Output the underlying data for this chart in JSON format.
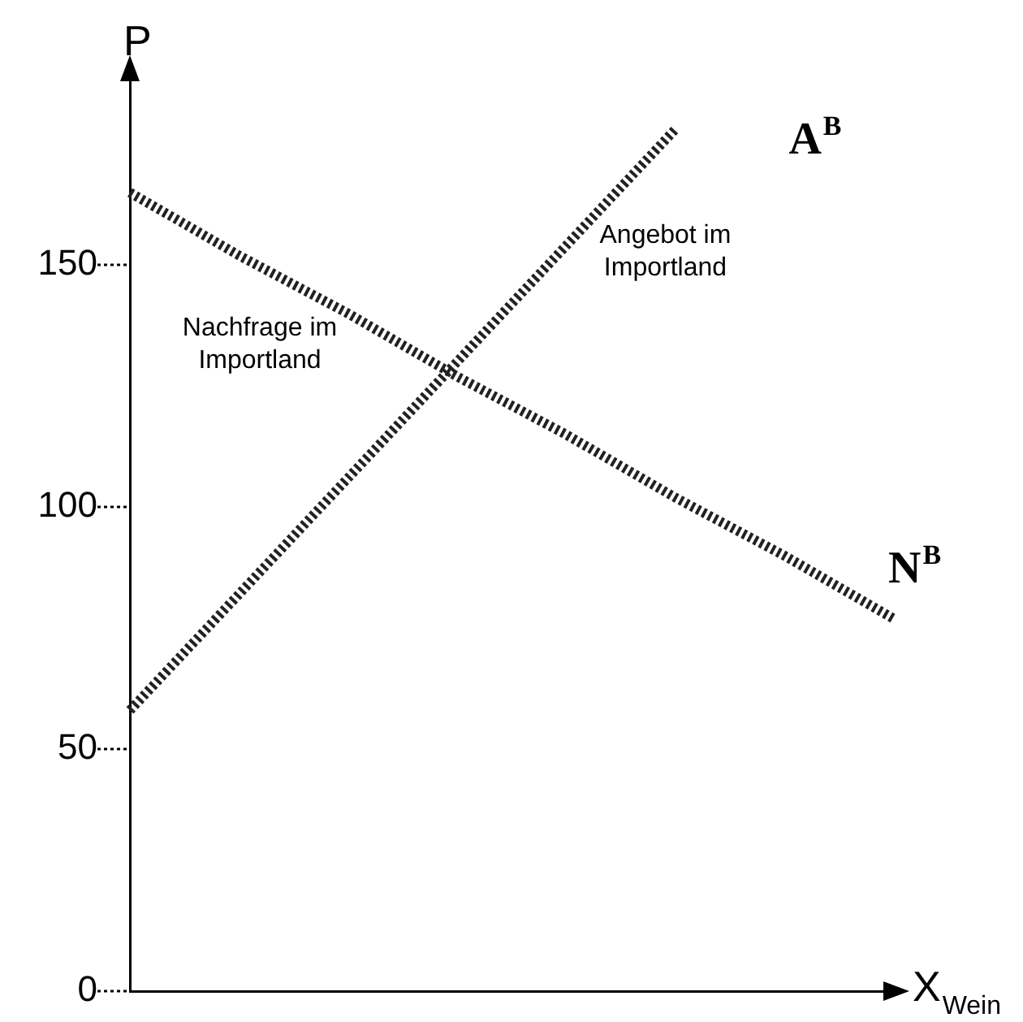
{
  "chart_data": {
    "type": "line",
    "ylabel": "P",
    "xlabel": "X$_{Wein}$",
    "categories": [
      null,
      null,
      null,
      null,
      null,
      null,
      null,
      null
    ],
    "series": [
      {
        "name": "A$^{B}$",
        "color": "#222222",
        "values": [
          58,
          82,
          106,
          130,
          154,
          178,
          null,
          null
        ]
      },
      {
        "name": "N$^{B}$",
        "color": "#222222",
        "values": [
          165,
          152,
          140,
          127,
          115,
          102,
          90,
          77
        ]
      }
    ],
    "ylim": [
      0,
      190
    ],
    "yticks": [
      0,
      50,
      100,
      150
    ],
    "grid": false,
    "legend": false,
    "tick_labels": "y",
    "marker": "none",
    "line_style": "dotted",
    "annotations": [
      "Angebot im\nImportland",
      "Nachfrage im\nImportland"
    ]
  }
}
